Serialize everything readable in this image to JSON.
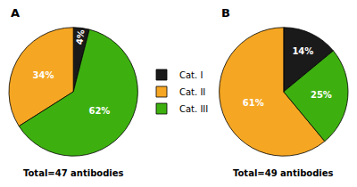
{
  "chart_data": [
    {
      "type": "pie",
      "title": "A",
      "categories": [
        "Cat. I",
        "Cat. II",
        "Cat. III"
      ],
      "values": [
        4,
        34,
        62
      ],
      "value_labels": [
        "4%",
        "34%",
        "62%"
      ],
      "colors": [
        "#1a1a1a",
        "#f5a623",
        "#3db010"
      ],
      "data_labels": true,
      "legend": "right",
      "annotations": [
        "Total=47 antibodies"
      ]
    },
    {
      "type": "pie",
      "title": "B",
      "categories": [
        "Cat. I",
        "Cat. II",
        "Cat. III"
      ],
      "values": [
        14,
        61,
        25
      ],
      "value_labels": [
        "14%",
        "61%",
        "25%"
      ],
      "colors": [
        "#1a1a1a",
        "#f5a623",
        "#3db010"
      ],
      "data_labels": true,
      "annotations": [
        "Total=49 antibodies"
      ]
    }
  ]
}
